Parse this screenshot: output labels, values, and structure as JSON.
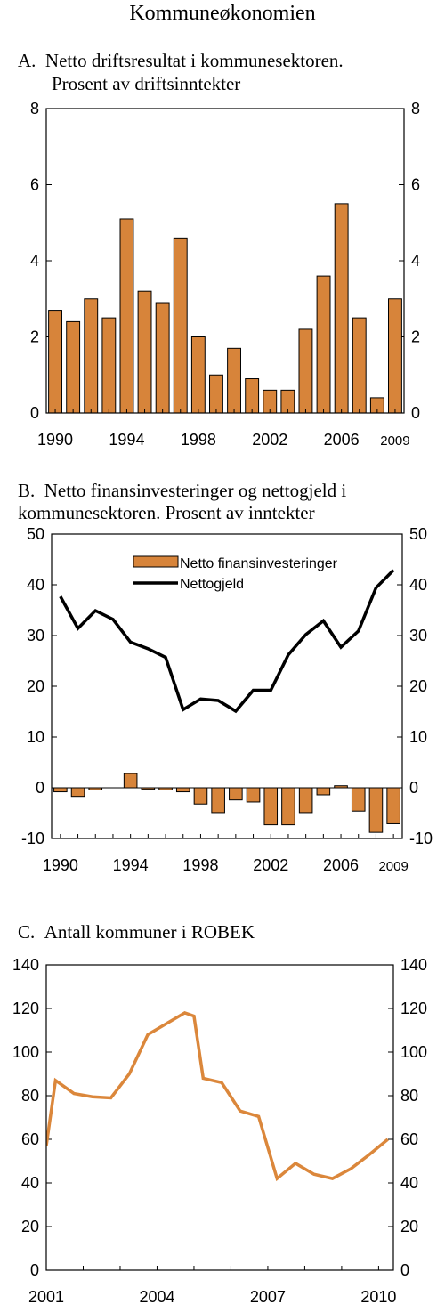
{
  "page_title": "Kommuneøkonomien",
  "colors": {
    "bar": "#D7843A",
    "bar_edge": "#000000",
    "line_black": "#000000",
    "line_orange": "#DB873B"
  },
  "chart_data": [
    {
      "type": "bar",
      "letter": "A.",
      "title_lines": [
        "Netto driftsresultat i kommunesektoren.",
        "Prosent av driftsinntekter"
      ],
      "x": [
        1990,
        1991,
        1992,
        1993,
        1994,
        1995,
        1996,
        1997,
        1998,
        1999,
        2000,
        2001,
        2002,
        2003,
        2004,
        2005,
        2006,
        2007,
        2008,
        2009
      ],
      "values": [
        2.7,
        2.4,
        3.0,
        2.5,
        5.1,
        3.2,
        2.9,
        4.6,
        2.0,
        1.0,
        1.7,
        0.9,
        0.6,
        0.6,
        2.2,
        3.6,
        5.5,
        2.5,
        0.4,
        3.0
      ],
      "ylim": [
        0,
        8
      ],
      "yticks": [
        0,
        2,
        4,
        6,
        8
      ],
      "xtick_labels": [
        "1990",
        "1994",
        "1998",
        "2002",
        "2006",
        "2009"
      ],
      "grid": false
    },
    {
      "type": "bar+line",
      "letter": "B.",
      "title_lines": [
        "Netto finansinvesteringer og nettogjeld i",
        "kommunesektoren. Prosent av inntekter"
      ],
      "x": [
        1990,
        1991,
        1992,
        1993,
        1994,
        1995,
        1996,
        1997,
        1998,
        1999,
        2000,
        2001,
        2002,
        2003,
        2004,
        2005,
        2006,
        2007,
        2008,
        2009
      ],
      "series": [
        {
          "name": "Netto finansinvesteringer",
          "kind": "bar",
          "values": [
            -0.8,
            -1.7,
            -0.4,
            0.0,
            2.8,
            -0.3,
            -0.4,
            -0.8,
            -3.2,
            -4.9,
            -2.4,
            -2.8,
            -7.3,
            -7.3,
            -4.9,
            -1.4,
            0.4,
            -4.6,
            -8.8,
            -7.1
          ]
        },
        {
          "name": "Nettogjeld",
          "kind": "line",
          "values": [
            37.7,
            31.4,
            34.9,
            33.2,
            28.7,
            27.4,
            25.7,
            15.4,
            17.5,
            17.2,
            15.1,
            19.2,
            19.2,
            26.2,
            30.2,
            32.9,
            27.7,
            30.9,
            39.4,
            42.9
          ]
        }
      ],
      "ylim": [
        -10,
        50
      ],
      "yticks": [
        -10,
        0,
        10,
        20,
        30,
        40,
        50
      ],
      "xtick_labels": [
        "1990",
        "1994",
        "1998",
        "2002",
        "2006",
        "2009"
      ],
      "legend_position": "top-right",
      "grid": false
    },
    {
      "type": "line",
      "letter": "C.",
      "title_lines": [
        "Antall kommuner i ROBEK"
      ],
      "x": [
        2001.0,
        2001.25,
        2001.75,
        2002.25,
        2002.75,
        2003.25,
        2003.75,
        2004.25,
        2004.75,
        2005.0,
        2005.25,
        2005.75,
        2006.25,
        2006.75,
        2007.25,
        2007.75,
        2008.25,
        2008.75,
        2009.25,
        2009.75,
        2010.25
      ],
      "values": [
        57,
        87,
        81,
        79.5,
        79,
        90,
        108,
        113,
        118,
        116.5,
        88,
        86,
        73,
        70.5,
        42,
        49,
        44,
        42,
        46.5,
        53,
        60
      ],
      "ylim": [
        0,
        140
      ],
      "yticks": [
        0,
        20,
        40,
        60,
        80,
        100,
        120,
        140
      ],
      "xtick_labels": [
        "2001",
        "2004",
        "2007",
        "2010"
      ],
      "grid": false
    }
  ]
}
